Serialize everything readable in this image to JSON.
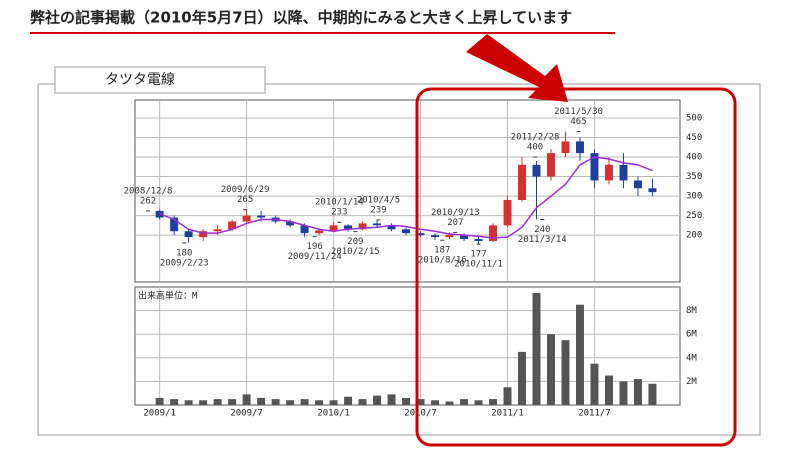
{
  "header": {
    "title": "弊社の記事掲載（2010年5月7日）以降、中期的にみると大きく上昇しています"
  },
  "chart_data": {
    "type": "candlestick",
    "title": "タツタ電線",
    "up_color": "#d83030",
    "down_color": "#1f3f9f",
    "x": [
      0,
      1,
      2,
      3,
      4,
      5,
      6,
      7,
      8,
      9,
      10,
      11,
      12,
      13,
      14,
      15,
      16,
      17,
      18,
      19,
      20,
      21,
      22,
      23,
      24,
      25,
      26,
      27,
      28,
      29,
      30,
      31,
      32,
      33,
      34
    ],
    "open": [
      262,
      245,
      210,
      195,
      210,
      215,
      235,
      250,
      245,
      235,
      225,
      205,
      212,
      225,
      215,
      230,
      225,
      215,
      205,
      200,
      195,
      200,
      190,
      185,
      225,
      290,
      380,
      350,
      410,
      440,
      410,
      340,
      380,
      340,
      320
    ],
    "high": [
      265,
      250,
      215,
      215,
      225,
      240,
      265,
      262,
      250,
      240,
      230,
      215,
      233,
      228,
      235,
      239,
      230,
      220,
      210,
      205,
      207,
      205,
      195,
      230,
      300,
      400,
      390,
      420,
      465,
      450,
      420,
      400,
      410,
      350,
      345
    ],
    "low": [
      240,
      200,
      180,
      185,
      200,
      210,
      230,
      235,
      230,
      220,
      196,
      200,
      210,
      209,
      212,
      220,
      210,
      200,
      195,
      187,
      190,
      185,
      177,
      183,
      220,
      285,
      240,
      340,
      400,
      390,
      320,
      330,
      320,
      300,
      300
    ],
    "close": [
      245,
      210,
      195,
      210,
      215,
      235,
      250,
      245,
      235,
      225,
      205,
      212,
      225,
      215,
      230,
      225,
      215,
      205,
      200,
      195,
      200,
      190,
      185,
      225,
      290,
      380,
      350,
      410,
      440,
      410,
      340,
      380,
      340,
      320,
      310
    ],
    "moving_average": {
      "color": "#9a2fd6",
      "values": [
        255,
        240,
        215,
        205,
        205,
        215,
        230,
        240,
        240,
        235,
        225,
        215,
        210,
        215,
        218,
        220,
        225,
        222,
        215,
        210,
        203,
        200,
        197,
        193,
        195,
        220,
        270,
        300,
        330,
        380,
        400,
        395,
        385,
        380,
        365
      ]
    },
    "xlim": [
      -1.7,
      35.9
    ],
    "ylim": [
      80,
      546
    ],
    "yticks": [
      200,
      250,
      300,
      350,
      400,
      450,
      500
    ],
    "xticks": [
      {
        "value": 0,
        "label": "2009/1"
      },
      {
        "value": 6,
        "label": "2009/7"
      },
      {
        "value": 12,
        "label": "2010/1"
      },
      {
        "value": 18,
        "label": "2010/7"
      },
      {
        "value": 24,
        "label": "2011/1"
      },
      {
        "value": 30,
        "label": "2011/7"
      }
    ],
    "grid": true,
    "annotations": [
      {
        "date": "2008/12/8",
        "value": 262,
        "x": -0.8
      },
      {
        "date": "2009/2/23",
        "value": 180,
        "x": 1.7
      },
      {
        "date": "2009/6/29",
        "value": 265,
        "x": 5.9
      },
      {
        "date": "2009/11/24",
        "value": 196,
        "x": 10.7
      },
      {
        "date": "2010/1/14",
        "value": 233,
        "x": 12.4
      },
      {
        "date": "2010/2/15",
        "value": 209,
        "x": 13.5
      },
      {
        "date": "2010/4/5",
        "value": 239,
        "x": 15.1
      },
      {
        "date": "2010/8/16",
        "value": 187,
        "x": 19.5
      },
      {
        "date": "2010/9/13",
        "value": 207,
        "x": 20.4
      },
      {
        "date": "2010/11/1",
        "value": 177,
        "x": 22.0
      },
      {
        "date": "2011/2/28",
        "value": 400,
        "x": 25.9
      },
      {
        "date": "2011/3/14",
        "value": 240,
        "x": 26.4
      },
      {
        "date": "2011/5/30",
        "value": 465,
        "x": 28.9
      }
    ],
    "volume": {
      "label": "出来高単位：M",
      "color": "#555555",
      "values": [
        0.6,
        0.5,
        0.4,
        0.4,
        0.5,
        0.5,
        0.9,
        0.6,
        0.5,
        0.4,
        0.5,
        0.4,
        0.4,
        0.7,
        0.5,
        0.8,
        0.9,
        0.6,
        0.5,
        0.4,
        0.3,
        0.5,
        0.4,
        0.5,
        1.5,
        4.5,
        9.5,
        6.0,
        5.5,
        8.5,
        3.5,
        2.5,
        2.0,
        2.2,
        1.8
      ],
      "ylim": [
        0,
        10
      ],
      "yticks": [
        {
          "value": 2,
          "label": "2M"
        },
        {
          "value": 4,
          "label": "4M"
        },
        {
          "value": 6,
          "label": "6M"
        },
        {
          "value": 8,
          "label": "8M"
        }
      ]
    }
  }
}
